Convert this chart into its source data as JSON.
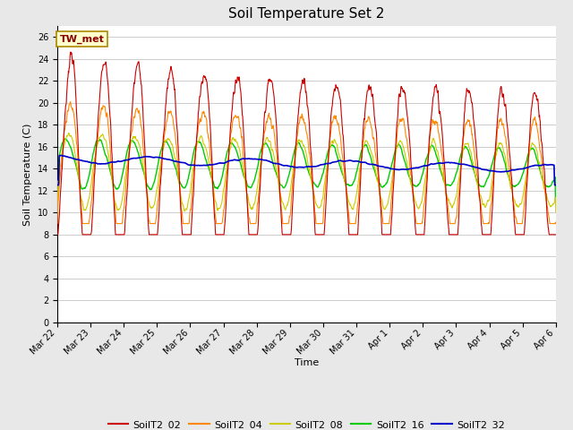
{
  "title": "Soil Temperature Set 2",
  "xlabel": "Time",
  "ylabel": "Soil Temperature (C)",
  "ylim": [
    0,
    27
  ],
  "yticks": [
    0,
    2,
    4,
    6,
    8,
    10,
    12,
    14,
    16,
    18,
    20,
    22,
    24,
    26
  ],
  "series_colors": {
    "SoilT2_02": "#cc0000",
    "SoilT2_04": "#ff8800",
    "SoilT2_08": "#cccc00",
    "SoilT2_16": "#00cc00",
    "SoilT2_32": "#0000cc"
  },
  "annotation_label": "TW_met",
  "annotation_color": "#880000",
  "annotation_bg": "#ffffcc",
  "annotation_border": "#aa8800",
  "plot_bg": "#ffffff",
  "fig_bg": "#e8e8e8",
  "title_fontsize": 11,
  "axis_fontsize": 8,
  "tick_fontsize": 7,
  "legend_fontsize": 8,
  "xtick_labels": [
    "Mar 22",
    "Mar 23",
    "Mar 24",
    "Mar 25",
    "Mar 26",
    "Mar 27",
    "Mar 28",
    "Mar 29",
    "Mar 30",
    "Mar 31",
    "Apr 1",
    "Apr 2",
    "Apr 3",
    "Apr 4",
    "Apr 5",
    "Apr 6"
  ]
}
